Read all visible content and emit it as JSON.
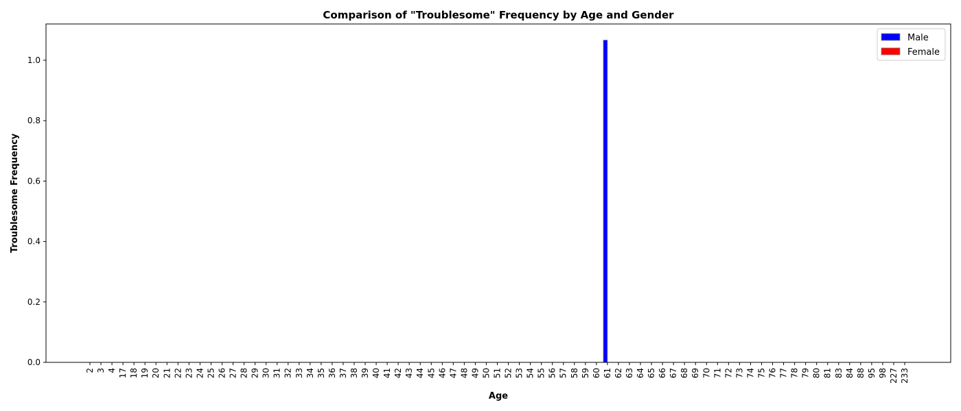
{
  "chart_data": {
    "type": "bar",
    "title": "Comparison of \"Troublesome\" Frequency by Age and Gender",
    "xlabel": "Age",
    "ylabel": "Troublesome Frequency",
    "categories": [
      "2",
      "3",
      "4",
      "17",
      "18",
      "19",
      "20",
      "21",
      "22",
      "23",
      "24",
      "25",
      "26",
      "27",
      "28",
      "29",
      "30",
      "31",
      "32",
      "33",
      "34",
      "35",
      "36",
      "37",
      "38",
      "39",
      "40",
      "41",
      "42",
      "43",
      "44",
      "45",
      "46",
      "47",
      "48",
      "49",
      "50",
      "51",
      "52",
      "53",
      "54",
      "55",
      "56",
      "57",
      "58",
      "59",
      "60",
      "61",
      "62",
      "63",
      "64",
      "65",
      "66",
      "67",
      "68",
      "69",
      "70",
      "71",
      "72",
      "73",
      "74",
      "75",
      "76",
      "77",
      "78",
      "79",
      "80",
      "81",
      "83",
      "84",
      "88",
      "95",
      "98",
      "227",
      "233"
    ],
    "series": [
      {
        "name": "Male",
        "color": "#0000ff",
        "values": [
          0,
          0,
          0,
          0,
          0,
          0,
          0,
          0,
          0,
          0,
          0,
          0,
          0,
          0,
          0,
          0,
          0,
          0,
          0,
          0,
          0,
          0,
          0,
          0,
          0,
          0,
          0,
          0,
          0,
          0,
          0,
          0,
          0,
          0,
          0,
          0,
          0,
          0,
          0,
          0,
          0,
          0,
          0,
          0,
          0,
          0,
          0,
          1.0667,
          0,
          0,
          0,
          0,
          0,
          0,
          0,
          0,
          0,
          0,
          0,
          0,
          0,
          0,
          0,
          0,
          0,
          0,
          0,
          0,
          0,
          0,
          0,
          0,
          0,
          0,
          0
        ]
      },
      {
        "name": "Female",
        "color": "#ff0000",
        "values": [
          0,
          0,
          0,
          0,
          0,
          0,
          0,
          0,
          0,
          0,
          0,
          0,
          0,
          0,
          0,
          0,
          0,
          0,
          0,
          0,
          0,
          0,
          0,
          0,
          0,
          0,
          0,
          0,
          0,
          0,
          0,
          0,
          0,
          0,
          0,
          0,
          0,
          0,
          0,
          0,
          0,
          0,
          0,
          0,
          0,
          0,
          0,
          0,
          0,
          0,
          0,
          0,
          0,
          0,
          0,
          0,
          0,
          0,
          0,
          0,
          0,
          0,
          0,
          0,
          0,
          0,
          0,
          0,
          0,
          0,
          0,
          0,
          0,
          0,
          0
        ]
      }
    ],
    "yticks": [
      "0.0",
      "0.2",
      "0.4",
      "0.6",
      "0.8",
      "1.0"
    ],
    "ylim": [
      0,
      1.12
    ],
    "grid": false,
    "legend_position": "top-right"
  }
}
